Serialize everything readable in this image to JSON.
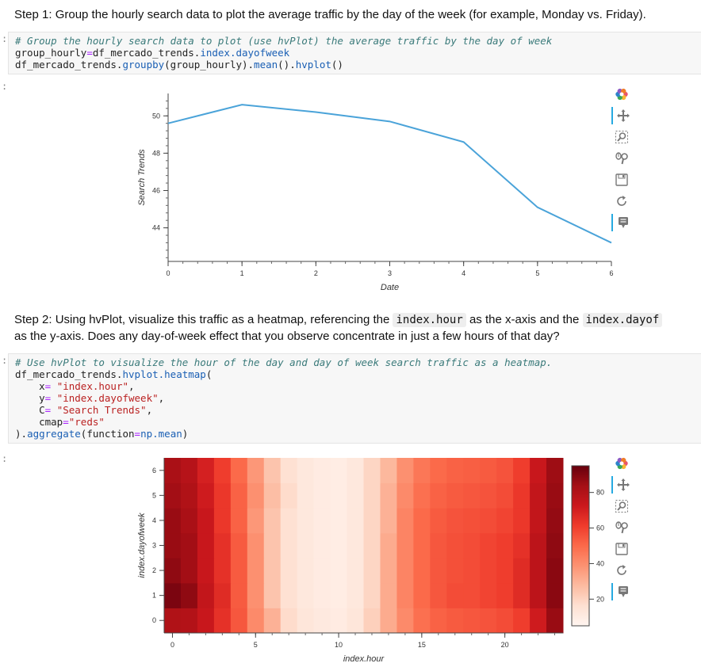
{
  "step1": {
    "text": "Step 1: Group the hourly search data to plot the average traffic by the day of the week (for example, Monday vs. Friday)."
  },
  "cell1": {
    "comment": "# Group the hourly search data to plot (use hvPlot) the average traffic by the day of week",
    "line2_a": "group_hourly",
    "line2_b": "=",
    "line2_c": "df_mercado_trends.",
    "line2_d": "index.dayofweek",
    "line3_a": "df_mercado_trends.",
    "line3_b": "groupby",
    "line3_c": "(group_hourly).",
    "line3_d": "mean",
    "line3_e": "().",
    "line3_f": "hvplot",
    "line3_g": "()"
  },
  "step2": {
    "text_a": "Step 2: Using hvPlot, visualize this traffic as a heatmap, referencing the ",
    "code_a": "index.hour",
    "text_b": " as the x-axis and the ",
    "code_b": "index.dayof",
    "text_c": "as the y-axis. Does any day-of-week effect that you observe concentrate in just a few hours of that day?"
  },
  "cell2": {
    "comment": "# Use hvPlot to visualize the hour of the day and day of week search traffic as a heatmap.",
    "l2a": "df_mercado_trends.",
    "l2b": "hvplot.heatmap",
    "l2c": "(",
    "l3a": "    x",
    "l3b": "= ",
    "l3c": "\"index.hour\"",
    "l3d": ",",
    "l4a": "    y",
    "l4b": "= ",
    "l4c": "\"index.dayofweek\"",
    "l4d": ",",
    "l5a": "    C",
    "l5b": "= ",
    "l5c": "\"Search Trends\"",
    "l5d": ",",
    "l6a": "    cmap",
    "l6b": "=",
    "l6c": "\"reds\"",
    "l7a": ").",
    "l7b": "aggregate",
    "l7c": "(function",
    "l7d": "=",
    "l7e": "np.mean",
    "l7f": ")"
  },
  "prompts": {
    "p": ":"
  },
  "chart_data": [
    {
      "type": "line",
      "xlabel": "Date",
      "ylabel": "Search Trends",
      "x": [
        0,
        1,
        2,
        3,
        4,
        5,
        6
      ],
      "values": [
        49.6,
        50.6,
        50.2,
        49.7,
        48.6,
        45.1,
        43.2
      ],
      "xlim": [
        0,
        6
      ],
      "ylim": [
        42.2,
        51.2
      ],
      "xticks": [
        "0",
        "1",
        "2",
        "3",
        "4",
        "5",
        "6"
      ],
      "yticks": [
        "44",
        "46",
        "48",
        "50"
      ],
      "color": "#4aa3d9",
      "grid": false
    },
    {
      "type": "heatmap",
      "xlabel": "index.hour",
      "ylabel": "index.dayofweek",
      "xticks": [
        "0",
        "5",
        "10",
        "15",
        "20"
      ],
      "yticks": [
        "0",
        "1",
        "2",
        "3",
        "4",
        "5",
        "6"
      ],
      "x": [
        0,
        1,
        2,
        3,
        4,
        5,
        6,
        7,
        8,
        9,
        10,
        11,
        12,
        13,
        14,
        15,
        16,
        17,
        18,
        19,
        20,
        21,
        22,
        23
      ],
      "y": [
        0,
        1,
        2,
        3,
        4,
        5,
        6
      ],
      "values": [
        [
          84,
          83,
          76,
          66,
          55,
          40,
          28,
          14,
          9,
          7,
          6,
          9,
          18,
          30,
          40,
          48,
          52,
          54,
          55,
          56,
          58,
          62,
          74,
          90
        ],
        [
          96,
          92,
          78,
          68,
          54,
          38,
          22,
          12,
          8,
          6,
          5,
          8,
          16,
          30,
          42,
          50,
          55,
          58,
          58,
          60,
          62,
          68,
          80,
          93
        ],
        [
          92,
          88,
          76,
          66,
          54,
          38,
          22,
          12,
          8,
          6,
          5,
          8,
          16,
          30,
          42,
          50,
          55,
          57,
          58,
          60,
          62,
          68,
          80,
          93
        ],
        [
          90,
          88,
          76,
          66,
          54,
          38,
          22,
          12,
          8,
          6,
          5,
          8,
          16,
          30,
          42,
          50,
          55,
          57,
          58,
          60,
          62,
          66,
          80,
          92
        ],
        [
          90,
          86,
          76,
          64,
          52,
          36,
          22,
          12,
          8,
          6,
          5,
          8,
          16,
          28,
          42,
          50,
          54,
          56,
          57,
          58,
          60,
          64,
          78,
          91
        ],
        [
          88,
          84,
          74,
          64,
          52,
          38,
          24,
          14,
          8,
          6,
          5,
          8,
          16,
          28,
          40,
          48,
          52,
          54,
          55,
          56,
          58,
          64,
          78,
          90
        ],
        [
          86,
          82,
          72,
          62,
          50,
          36,
          22,
          12,
          8,
          6,
          5,
          8,
          16,
          26,
          38,
          46,
          50,
          52,
          53,
          54,
          56,
          62,
          76,
          89
        ]
      ],
      "cmap": "reds",
      "colorbar_ticks": [
        "20",
        "40",
        "60",
        "80"
      ],
      "zlim": [
        0,
        100
      ]
    }
  ],
  "toolbar": {
    "tools": [
      "logo-icon",
      "pan-icon",
      "box-zoom-icon",
      "wheel-zoom-icon",
      "save-icon",
      "reset-icon",
      "hover-icon"
    ]
  }
}
